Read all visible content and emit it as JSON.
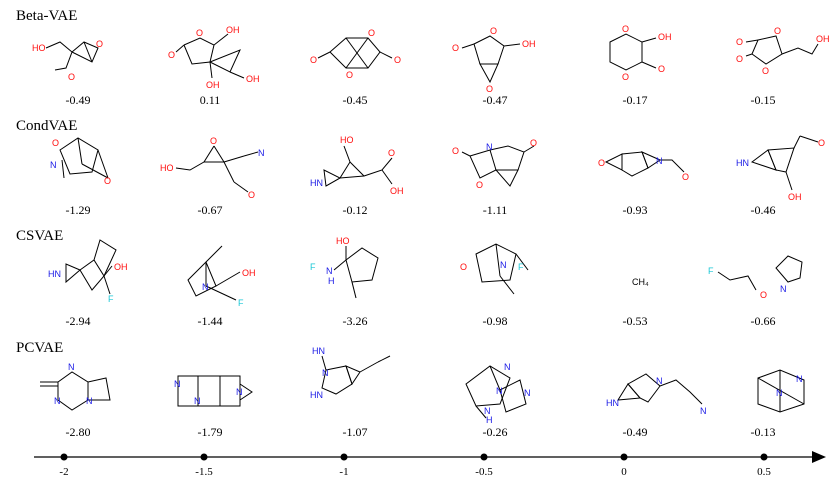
{
  "rows": [
    {
      "title": "Beta-VAE",
      "molecules": [
        {
          "score": "-0.49",
          "labels": [
            "HO",
            "O",
            "O"
          ]
        },
        {
          "score": "0.11",
          "labels": [
            "O",
            "O",
            "OH",
            "OH",
            "OH"
          ]
        },
        {
          "score": "-0.45",
          "labels": [
            "O",
            "O",
            "O",
            "O"
          ]
        },
        {
          "score": "-0.47",
          "labels": [
            "O",
            "O",
            "OH",
            "O"
          ]
        },
        {
          "score": "-0.17",
          "labels": [
            "O",
            "O",
            "OH",
            "O"
          ]
        },
        {
          "score": "-0.15",
          "labels": [
            "O",
            "O",
            "O",
            "O",
            "OH"
          ]
        }
      ]
    },
    {
      "title": "CondVAE",
      "molecules": [
        {
          "score": "-1.29",
          "labels": [
            "O",
            "N",
            "O"
          ]
        },
        {
          "score": "-0.67",
          "labels": [
            "HO",
            "O",
            "N",
            "O"
          ]
        },
        {
          "score": "-0.12",
          "labels": [
            "HO",
            "HN",
            "O",
            "OH"
          ]
        },
        {
          "score": "-1.11",
          "labels": [
            "O",
            "N",
            "O",
            "O"
          ]
        },
        {
          "score": "-0.93",
          "labels": [
            "O",
            "N",
            "O"
          ]
        },
        {
          "score": "-0.46",
          "labels": [
            "HN",
            "O",
            "OH"
          ]
        }
      ]
    },
    {
      "title": "CSVAE",
      "molecules": [
        {
          "score": "-2.94",
          "labels": [
            "HN",
            "OH",
            "F"
          ]
        },
        {
          "score": "-1.44",
          "labels": [
            "N",
            "OH",
            "F"
          ]
        },
        {
          "score": "-3.26",
          "labels": [
            "HO",
            "F",
            "N",
            "H"
          ]
        },
        {
          "score": "-0.98",
          "labels": [
            "O",
            "N",
            "F"
          ]
        },
        {
          "score": "-0.53",
          "labels": [
            "CH₄"
          ]
        },
        {
          "score": "-0.66",
          "labels": [
            "F",
            "O",
            "N"
          ]
        }
      ]
    },
    {
      "title": "PCVAE",
      "molecules": [
        {
          "score": "-2.80",
          "labels": [
            "N",
            "N",
            "N"
          ]
        },
        {
          "score": "-1.79",
          "labels": [
            "N",
            "N",
            "N"
          ]
        },
        {
          "score": "-1.07",
          "labels": [
            "HN",
            "N",
            "HN"
          ]
        },
        {
          "score": "-0.26",
          "labels": [
            "N",
            "N",
            "N",
            "N",
            "H"
          ]
        },
        {
          "score": "-0.49",
          "labels": [
            "HN",
            "N",
            "N"
          ]
        },
        {
          "score": "-0.13",
          "labels": [
            "N",
            "N"
          ]
        }
      ]
    }
  ],
  "axis": {
    "ticks": [
      {
        "value": -2,
        "label": "-2"
      },
      {
        "value": -1.5,
        "label": "-1.5"
      },
      {
        "value": -1,
        "label": "-1"
      },
      {
        "value": -0.5,
        "label": "-0.5"
      },
      {
        "value": 0,
        "label": "0"
      },
      {
        "value": 0.5,
        "label": "0.5"
      }
    ]
  },
  "colors": {
    "oxygen": "#ff0d0d",
    "nitrogen": "#1919e6",
    "fluorine": "#19c7d6",
    "carbon": "#000000"
  }
}
